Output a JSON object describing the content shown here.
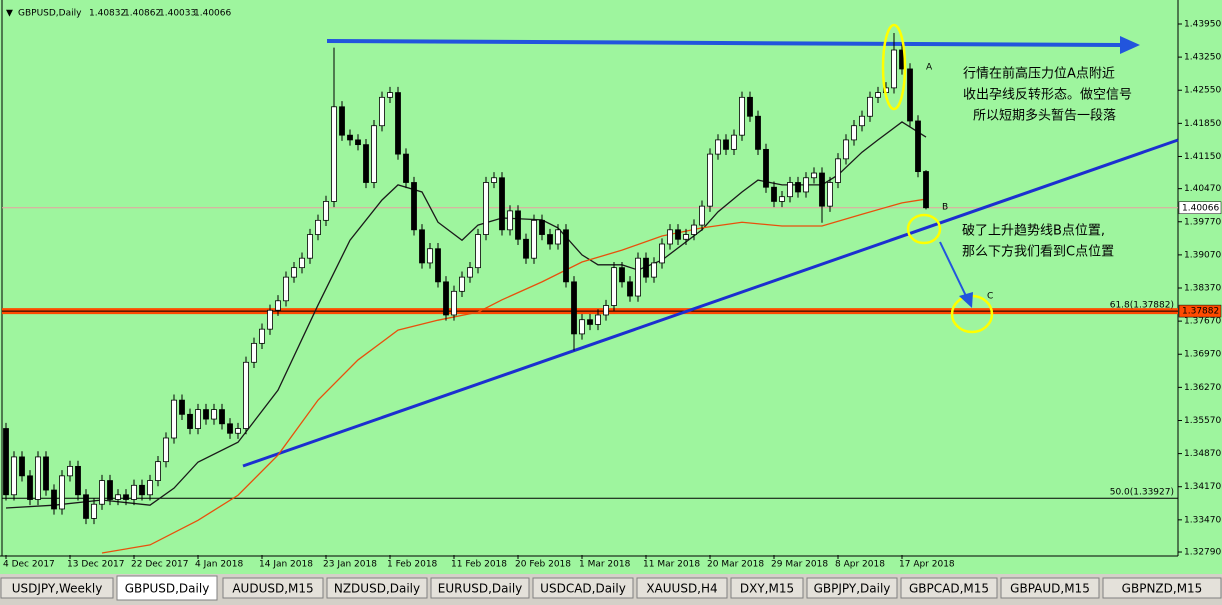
{
  "chart_data": {
    "type": "candlestick",
    "symbol": "GBPUSD,Daily",
    "categories": [
      "4 Dec 2017",
      null,
      null,
      null,
      null,
      null,
      null,
      null,
      "13 Dec 2017",
      null,
      null,
      null,
      null,
      null,
      null,
      null,
      "22 Dec 2017",
      null,
      null,
      null,
      null,
      null,
      null,
      null,
      "4 Jan 2018",
      null,
      null,
      null,
      null,
      null,
      null,
      null,
      "14 Jan 2018",
      null,
      null,
      null,
      null,
      null,
      null,
      null,
      "23 Jan 2018",
      null,
      null,
      null,
      null,
      null,
      null,
      null,
      "1 Feb 2018",
      null,
      null,
      null,
      null,
      null,
      null,
      null,
      "11 Feb 2018",
      null,
      null,
      null,
      null,
      null,
      null,
      null,
      "20 Feb 2018",
      null,
      null,
      null,
      null,
      null,
      null,
      null,
      "1 Mar 2018",
      null,
      null,
      null,
      null,
      null,
      null,
      null,
      "11 Mar 2018",
      null,
      null,
      null,
      null,
      null,
      null,
      null,
      "20 Mar 2018",
      null,
      null,
      null,
      null,
      null,
      null,
      null,
      "29 Mar 2018",
      null,
      null,
      null,
      null,
      null,
      null,
      null,
      "8 Apr 2018",
      null,
      null,
      null,
      null,
      null,
      null,
      null,
      "17 Apr 2018",
      null,
      null,
      null
    ],
    "open": [
      1.354,
      1.34,
      1.348,
      1.344,
      1.339,
      1.348,
      1.341,
      1.337,
      1.344,
      1.346,
      1.34,
      1.335,
      1.338,
      1.343,
      1.339,
      1.34,
      1.339,
      1.342,
      1.34,
      1.343,
      1.347,
      1.352,
      1.36,
      1.357,
      1.354,
      1.358,
      1.356,
      1.358,
      1.355,
      1.353,
      1.354,
      1.368,
      1.372,
      1.375,
      1.379,
      1.381,
      1.386,
      1.388,
      1.39,
      1.395,
      1.398,
      1.402,
      1.422,
      1.416,
      1.415,
      1.414,
      1.406,
      1.418,
      1.424,
      1.425,
      1.412,
      1.406,
      1.396,
      1.389,
      1.392,
      1.385,
      1.378,
      1.383,
      1.386,
      1.388,
      1.395,
      1.406,
      1.407,
      1.396,
      1.4,
      1.394,
      1.39,
      1.398,
      1.395,
      1.393,
      1.396,
      1.385,
      1.374,
      1.377,
      1.376,
      1.378,
      1.38,
      1.388,
      1.385,
      1.382,
      1.39,
      1.386,
      1.389,
      1.393,
      1.396,
      1.394,
      1.395,
      1.397,
      1.401,
      1.412,
      1.415,
      1.413,
      1.416,
      1.424,
      1.42,
      1.413,
      1.405,
      1.402,
      1.403,
      1.406,
      1.404,
      1.407,
      1.408,
      1.401,
      1.406,
      1.411,
      1.415,
      1.418,
      1.42,
      1.424,
      1.425,
      1.426,
      1.434,
      1.43,
      1.419,
      1.40832
    ],
    "high": [
      1.3552,
      1.3492,
      1.3492,
      1.3452,
      1.3492,
      1.3492,
      1.3422,
      1.3452,
      1.3472,
      1.3472,
      1.3412,
      1.3392,
      1.3442,
      1.3442,
      1.3412,
      1.3412,
      1.3432,
      1.3432,
      1.3442,
      1.3482,
      1.3532,
      1.3612,
      1.3612,
      1.3582,
      1.3592,
      1.3592,
      1.3592,
      1.3592,
      1.3562,
      1.3552,
      1.3692,
      1.3732,
      1.3762,
      1.3802,
      1.3822,
      1.3872,
      1.3892,
      1.3912,
      1.3962,
      1.3992,
      1.4032,
      1.4345,
      1.4232,
      1.4172,
      1.4162,
      1.4152,
      1.4192,
      1.4252,
      1.4262,
      1.4262,
      1.4132,
      1.4072,
      1.3972,
      1.3932,
      1.3932,
      1.3862,
      1.3842,
      1.3872,
      1.3892,
      1.3962,
      1.4072,
      1.4082,
      1.4082,
      1.4012,
      1.4012,
      1.3952,
      1.3992,
      1.3992,
      1.3962,
      1.3972,
      1.3972,
      1.3862,
      1.3782,
      1.3782,
      1.3792,
      1.3812,
      1.3892,
      1.3892,
      1.3862,
      1.3912,
      1.3912,
      1.3902,
      1.3942,
      1.3972,
      1.3972,
      1.3962,
      1.3982,
      1.4022,
      1.4132,
      1.4162,
      1.4162,
      1.4172,
      1.4252,
      1.4252,
      1.4212,
      1.4142,
      1.4062,
      1.4042,
      1.4072,
      1.4072,
      1.4082,
      1.4092,
      1.4092,
      1.4072,
      1.4122,
      1.4162,
      1.4192,
      1.4212,
      1.4252,
      1.4262,
      1.4272,
      1.4376,
      1.4352,
      1.4312,
      1.4202,
      1.40862
    ],
    "low": [
      1.3388,
      1.3388,
      1.3428,
      1.3378,
      1.3378,
      1.3398,
      1.3358,
      1.3358,
      1.3428,
      1.3388,
      1.3338,
      1.3338,
      1.3368,
      1.3378,
      1.3378,
      1.3378,
      1.3378,
      1.3388,
      1.3388,
      1.3418,
      1.3458,
      1.3508,
      1.3558,
      1.3528,
      1.3528,
      1.3548,
      1.3548,
      1.3538,
      1.3518,
      1.3518,
      1.3528,
      1.3668,
      1.3708,
      1.3738,
      1.3778,
      1.3798,
      1.3848,
      1.3868,
      1.3888,
      1.3938,
      1.3968,
      1.4008,
      1.4148,
      1.4138,
      1.4128,
      1.4048,
      1.4048,
      1.4168,
      1.4228,
      1.4108,
      1.4048,
      1.3948,
      1.3878,
      1.3878,
      1.3838,
      1.3768,
      1.3768,
      1.3818,
      1.3848,
      1.3868,
      1.3938,
      1.4048,
      1.3948,
      1.3948,
      1.3928,
      1.3888,
      1.3888,
      1.3938,
      1.3918,
      1.3918,
      1.3838,
      1.3705,
      1.3728,
      1.3748,
      1.3748,
      1.3768,
      1.3788,
      1.3838,
      1.3808,
      1.3808,
      1.3848,
      1.3848,
      1.3878,
      1.3918,
      1.3928,
      1.3928,
      1.3938,
      1.3958,
      1.3998,
      1.4108,
      1.4118,
      1.4118,
      1.4148,
      1.4188,
      1.4118,
      1.4038,
      1.4008,
      1.4008,
      1.4018,
      1.4028,
      1.4028,
      1.4058,
      1.3975,
      1.3998,
      1.4048,
      1.4098,
      1.4138,
      1.4168,
      1.4188,
      1.4228,
      1.4238,
      1.4248,
      1.4288,
      1.4178,
      1.4071,
      1.40033
    ],
    "close": [
      1.34,
      1.348,
      1.344,
      1.339,
      1.348,
      1.341,
      1.337,
      1.344,
      1.346,
      1.34,
      1.335,
      1.338,
      1.343,
      1.339,
      1.34,
      1.339,
      1.342,
      1.34,
      1.343,
      1.347,
      1.352,
      1.36,
      1.357,
      1.354,
      1.358,
      1.356,
      1.358,
      1.355,
      1.353,
      1.354,
      1.368,
      1.372,
      1.375,
      1.379,
      1.381,
      1.386,
      1.388,
      1.39,
      1.395,
      1.398,
      1.402,
      1.422,
      1.416,
      1.415,
      1.414,
      1.406,
      1.418,
      1.424,
      1.425,
      1.412,
      1.406,
      1.396,
      1.389,
      1.392,
      1.385,
      1.378,
      1.383,
      1.386,
      1.388,
      1.395,
      1.406,
      1.407,
      1.396,
      1.4,
      1.394,
      1.39,
      1.398,
      1.395,
      1.393,
      1.396,
      1.385,
      1.374,
      1.377,
      1.376,
      1.378,
      1.38,
      1.388,
      1.385,
      1.382,
      1.39,
      1.386,
      1.389,
      1.393,
      1.396,
      1.394,
      1.395,
      1.397,
      1.401,
      1.412,
      1.415,
      1.413,
      1.416,
      1.424,
      1.42,
      1.413,
      1.405,
      1.402,
      1.403,
      1.406,
      1.404,
      1.407,
      1.408,
      1.401,
      1.406,
      1.411,
      1.415,
      1.418,
      1.42,
      1.424,
      1.425,
      1.426,
      1.434,
      1.43,
      1.419,
      1.4083,
      1.40066
    ],
    "lines": [
      {
        "color": "#1a1a1a",
        "x": [
          0,
          6,
          12,
          18,
          21,
          24,
          29,
          34,
          39,
          43,
          47,
          49,
          52,
          54,
          57,
          59,
          62,
          67,
          69,
          72,
          74,
          77,
          79,
          82,
          87,
          89,
          92,
          94,
          97,
          99,
          102,
          104,
          107,
          109,
          112,
          115
        ],
        "values": [
          1.3372,
          1.3378,
          1.3389,
          1.3378,
          1.3414,
          1.3469,
          1.3511,
          1.3621,
          1.3801,
          1.3938,
          1.4023,
          1.4055,
          1.404,
          1.3976,
          1.3938,
          1.397,
          1.3985,
          1.3981,
          1.3964,
          1.3907,
          1.3886,
          1.3886,
          1.3875,
          1.3896,
          1.396,
          1.3998,
          1.404,
          1.4065,
          1.4055,
          1.4055,
          1.4055,
          1.4076,
          1.4124,
          1.415,
          1.4188,
          1.4156
        ]
      },
      {
        "color": "#e8500c",
        "x": [
          12,
          18,
          24,
          29,
          34,
          39,
          44,
          49,
          54,
          59,
          62,
          67,
          72,
          77,
          82,
          87,
          92,
          97,
          102,
          107,
          112,
          115
        ],
        "values": [
          1.3277,
          1.3294,
          1.3346,
          1.3399,
          1.3484,
          1.36,
          1.3685,
          1.3748,
          1.3769,
          1.3786,
          1.3812,
          1.385,
          1.3892,
          1.3917,
          1.3947,
          1.3964,
          1.3976,
          1.3968,
          1.3968,
          1.3993,
          1.4017,
          1.4025
        ]
      }
    ],
    "levels": [
      {
        "value": 1.37882,
        "label": "61.8(1.37882)",
        "color": "#ff4a00"
      },
      {
        "value": 1.33927,
        "label": "50.0(1.33927)",
        "color": "#000000"
      }
    ],
    "ylim": [
      1.32727,
      1.44457
    ],
    "yticks": [
      {
        "value": 1.4395,
        "label": "1.43950"
      },
      {
        "value": 1.4325,
        "label": "1.43250"
      },
      {
        "value": 1.4255,
        "label": "1.42550"
      },
      {
        "value": 1.4185,
        "label": "1.41850"
      },
      {
        "value": 1.4115,
        "label": "1.41150"
      },
      {
        "value": 1.4047,
        "label": "1.40470"
      },
      {
        "value": 1.3977,
        "label": "1.39770"
      },
      {
        "value": 1.3907,
        "label": "1.39070"
      },
      {
        "value": 1.3837,
        "label": "1.38370"
      },
      {
        "value": 1.3767,
        "label": "1.37670"
      },
      {
        "value": 1.3697,
        "label": "1.36970"
      },
      {
        "value": 1.3627,
        "label": "1.36270"
      },
      {
        "value": 1.3557,
        "label": "1.35570"
      },
      {
        "value": 1.3487,
        "label": "1.34870"
      },
      {
        "value": 1.3417,
        "label": "1.34170"
      },
      {
        "value": 1.3347,
        "label": "1.33470"
      },
      {
        "value": 1.3279,
        "label": "1.32790"
      }
    ],
    "annotations": {
      "a": "A",
      "b": "B",
      "c": "C",
      "note_a": [
        "行情在前高压力位A点附近",
        "收出孕线反转形态。做空信号",
        "所以短期多头暂告一段落"
      ],
      "note_b": [
        "破了上升趋势线B点位置,",
        "那么下方我们看到C点位置"
      ]
    }
  },
  "tabs": [
    "USDJPY,Weekly",
    "GBPUSD,Daily",
    "AUDUSD,M15",
    "NZDUSD,Daily",
    "EURUSD,Daily",
    "USDCAD,Daily",
    "XAUUSD,H4",
    "DXY,M15",
    "GBPJPY,Daily",
    "GBPCAD,M15",
    "GBPAUD,M15",
    "GBPNZD,M15"
  ]
}
